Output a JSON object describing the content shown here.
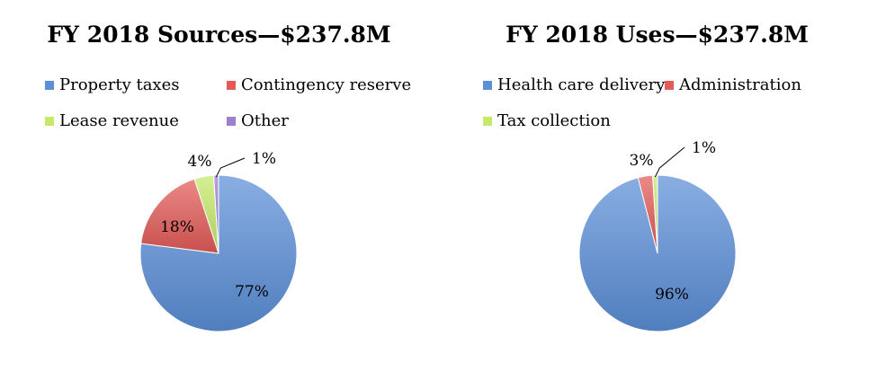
{
  "charts": [
    {
      "title": "FY 2018 Sources—$237.8M",
      "legend": [
        "Property taxes",
        "Contingency reserve",
        "Lease revenue",
        "Other"
      ]
    },
    {
      "title": "FY 2018 Uses—$237.8M",
      "legend": [
        "Health care delivery",
        "Administration",
        "Tax collection"
      ]
    }
  ],
  "colors": {
    "blue": "#5b8fd8",
    "red": "#e35b58",
    "green": "#c5ea6a",
    "purple": "#9e7fd0"
  },
  "chart_data": [
    {
      "type": "pie",
      "title": "FY 2018 Sources—$237.8M",
      "labels": [
        "Property taxes",
        "Contingency reserve",
        "Lease revenue",
        "Other"
      ],
      "values": [
        77,
        18,
        4,
        1
      ],
      "value_labels": [
        "77%",
        "18%",
        "4%",
        "1%"
      ],
      "colors": [
        "#5b8fd8",
        "#e35b58",
        "#c5ea6a",
        "#9e7fd0"
      ],
      "legend_position": "top"
    },
    {
      "type": "pie",
      "title": "FY 2018 Uses—$237.8M",
      "labels": [
        "Health care delivery",
        "Administration",
        "Tax collection"
      ],
      "values": [
        96,
        3,
        1
      ],
      "value_labels": [
        "96%",
        "3%",
        "1%"
      ],
      "colors": [
        "#5b8fd8",
        "#e35b58",
        "#c5ea6a"
      ],
      "legend_position": "top"
    }
  ]
}
